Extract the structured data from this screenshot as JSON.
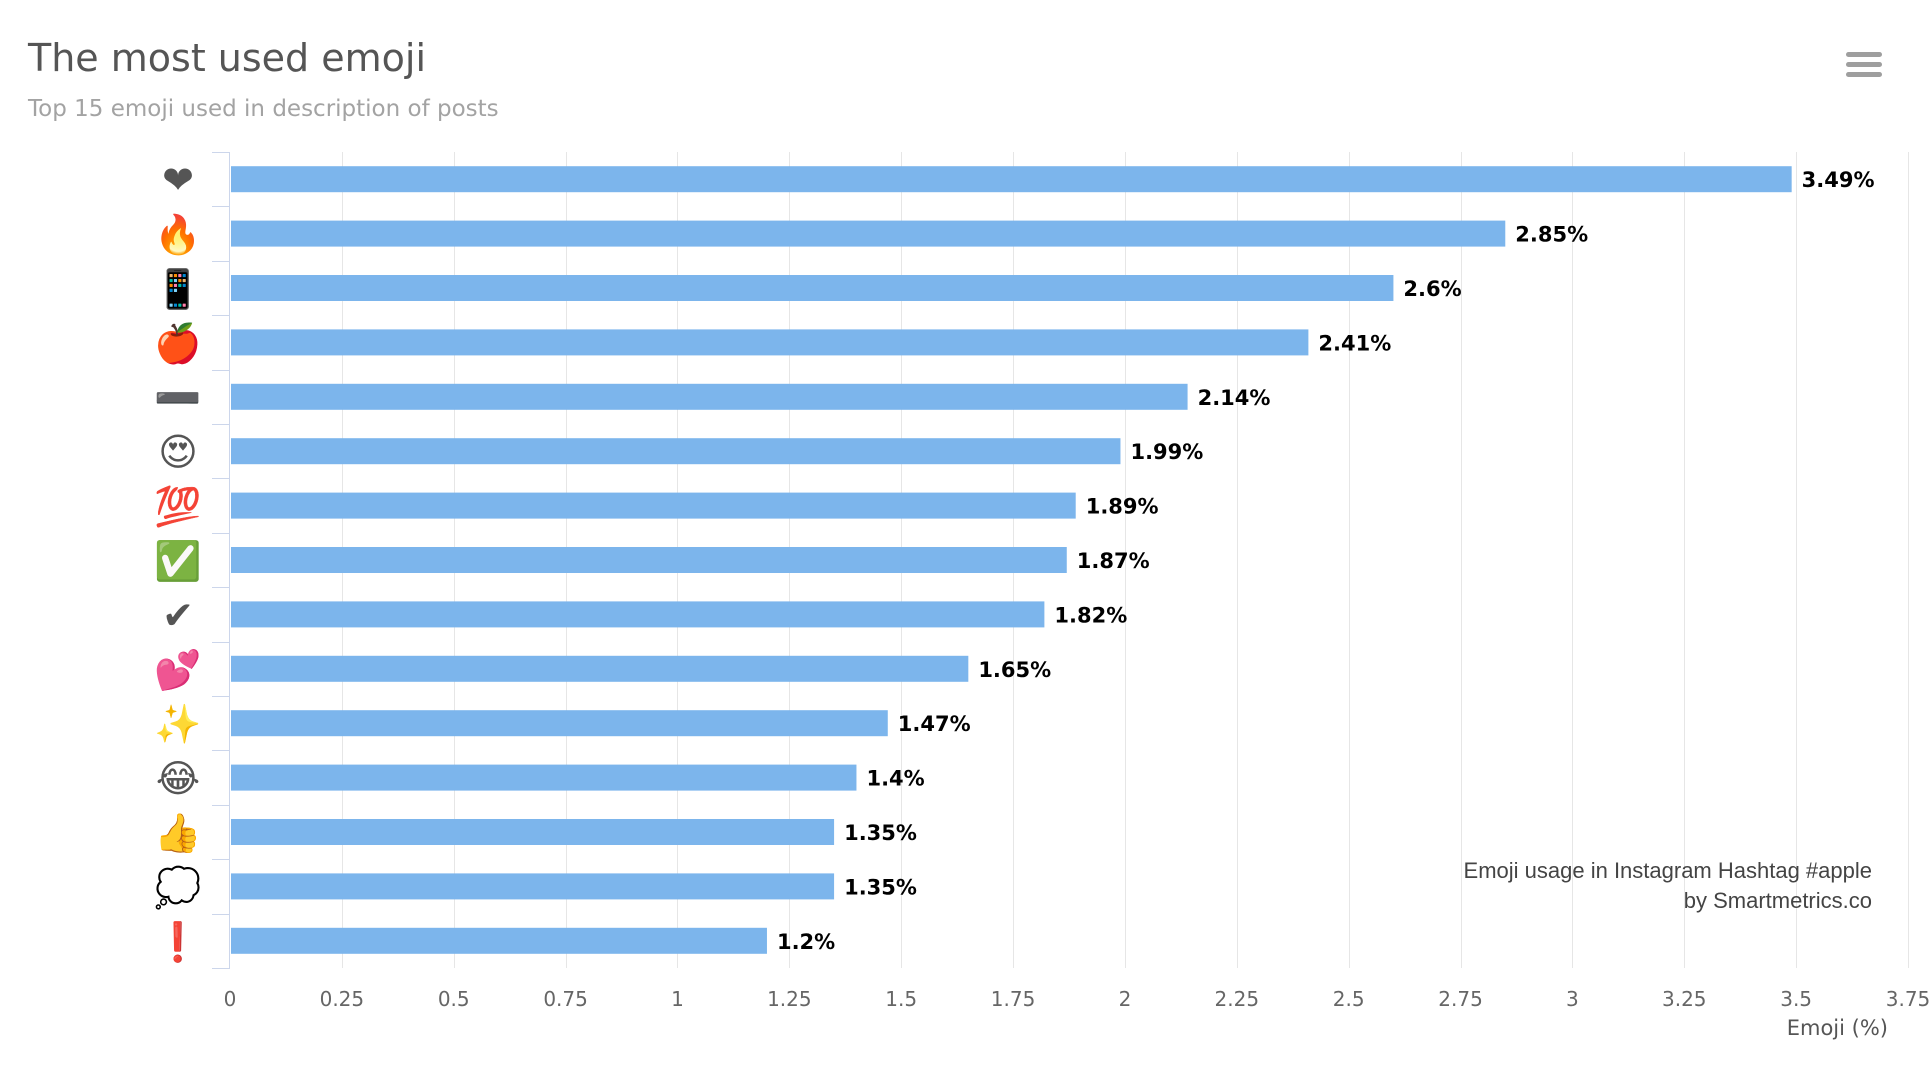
{
  "header": {
    "title": "The most used emoji",
    "subtitle": "Top 15 emoji used in description of posts",
    "menu_icon": "hamburger-menu-icon"
  },
  "credits": {
    "line1": "Emoji usage in Instagram Hashtag #apple",
    "line2": "by Smartmetrics.co"
  },
  "colors": {
    "bar": "#7cb5ec",
    "grid": "#e6e6e6",
    "axis": "#ccd6eb",
    "label": "#000000",
    "tick": "#666666"
  },
  "chart_data": {
    "type": "bar",
    "orientation": "horizontal",
    "title": "The most used emoji",
    "subtitle": "Top 15 emoji used in description of posts",
    "xlabel": "Emoji (%)",
    "ylabel": "",
    "xlim": [
      0,
      3.75
    ],
    "x_ticks": [
      "0",
      "0.25",
      "0.5",
      "0.75",
      "1",
      "1.25",
      "1.5",
      "1.75",
      "2",
      "2.25",
      "2.5",
      "2.75",
      "3",
      "3.25",
      "3.5",
      "3.75"
    ],
    "grid": true,
    "legend": "none",
    "categories": [
      "❤",
      "🔥",
      "📱",
      "🍎",
      "➖",
      "😍",
      "💯",
      "✅",
      "✔",
      "💕",
      "✨",
      "😂",
      "👍",
      "💭",
      "❗"
    ],
    "values": [
      3.49,
      2.85,
      2.6,
      2.41,
      2.14,
      1.99,
      1.89,
      1.87,
      1.82,
      1.65,
      1.47,
      1.4,
      1.35,
      1.35,
      1.2
    ],
    "data_labels": [
      "3.49%",
      "2.85%",
      "2.6%",
      "2.41%",
      "2.14%",
      "1.99%",
      "1.89%",
      "1.87%",
      "1.82%",
      "1.65%",
      "1.47%",
      "1.4%",
      "1.35%",
      "1.35%",
      "1.2%"
    ]
  }
}
